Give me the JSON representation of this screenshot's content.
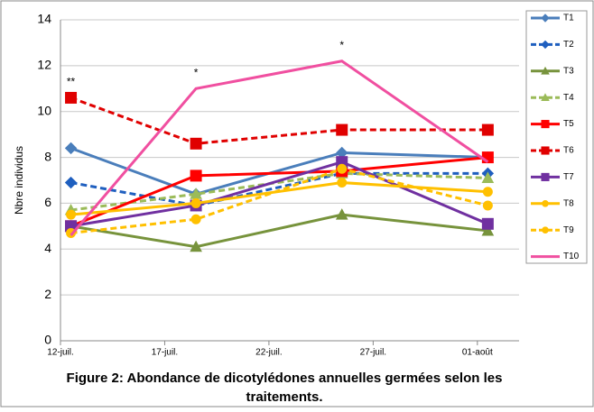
{
  "chart_data": {
    "type": "line",
    "y_label": "Nbre individus",
    "caption": [
      "Figure 2: Abondance de dicotylédones annuelles germées selon les",
      "traitements."
    ],
    "annotations": [
      "**",
      "*",
      "*"
    ],
    "x": [
      12.5,
      18.5,
      25.5,
      32.5
    ],
    "xlim": [
      12,
      34
    ],
    "xticks": [
      {
        "value": 12,
        "label": "12-juil."
      },
      {
        "value": 17,
        "label": "17-juil."
      },
      {
        "value": 22,
        "label": "22-juil."
      },
      {
        "value": 27,
        "label": "27-juil."
      },
      {
        "value": 32,
        "label": "01-août"
      }
    ],
    "ylim": [
      0,
      14
    ],
    "yticks": [
      0,
      2,
      4,
      6,
      8,
      10,
      12,
      14
    ],
    "grid": true,
    "legend": "right",
    "series": [
      {
        "name": "T1",
        "color": "#4a7ebb",
        "marker": "diamond",
        "dashed": false,
        "values": [
          8.4,
          6.4,
          8.2,
          8.0
        ]
      },
      {
        "name": "T2",
        "color": "#1f5fbf",
        "marker": "diamond",
        "dashed": true,
        "values": [
          6.9,
          5.9,
          7.3,
          7.3
        ]
      },
      {
        "name": "T3",
        "color": "#77933c",
        "marker": "triangle",
        "dashed": false,
        "values": [
          5.0,
          4.1,
          5.5,
          4.8
        ]
      },
      {
        "name": "T4",
        "color": "#9bbb59",
        "marker": "triangle",
        "dashed": true,
        "values": [
          5.7,
          6.4,
          7.3,
          7.1
        ]
      },
      {
        "name": "T5",
        "color": "#ff0000",
        "marker": "square",
        "dashed": false,
        "values": [
          5.0,
          7.2,
          7.4,
          8.0
        ]
      },
      {
        "name": "T6",
        "color": "#e00000",
        "marker": "square",
        "dashed": true,
        "values": [
          10.6,
          8.6,
          9.2,
          9.2
        ]
      },
      {
        "name": "T7",
        "color": "#7030a0",
        "marker": "square",
        "dashed": false,
        "values": [
          5.0,
          5.9,
          7.8,
          5.1
        ]
      },
      {
        "name": "T8",
        "color": "#ffc000",
        "marker": "circle",
        "dashed": false,
        "values": [
          5.5,
          6.0,
          6.9,
          6.5
        ]
      },
      {
        "name": "T9",
        "color": "#ffc000",
        "marker": "circle",
        "dashed": true,
        "values": [
          4.7,
          5.3,
          7.5,
          5.9
        ]
      },
      {
        "name": "T10",
        "color": "#f04fa0",
        "marker": "none",
        "dashed": false,
        "values": [
          4.6,
          11.0,
          12.2,
          7.8
        ]
      }
    ]
  }
}
